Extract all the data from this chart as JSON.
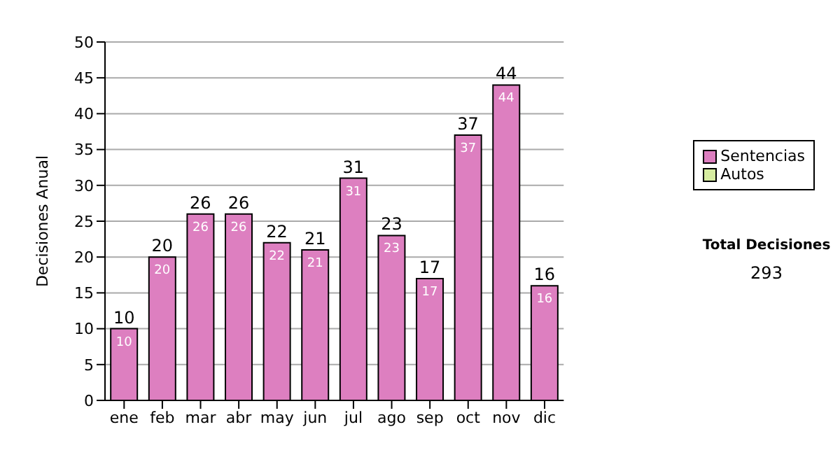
{
  "chart_data": {
    "type": "bar",
    "ylabel": "Decisiones Anual",
    "categories": [
      "ene",
      "feb",
      "mar",
      "abr",
      "may",
      "jun",
      "jul",
      "ago",
      "sep",
      "oct",
      "nov",
      "dic"
    ],
    "series": [
      {
        "name": "Sentencias",
        "color": "#dd7fc0",
        "values": [
          10,
          20,
          26,
          26,
          22,
          21,
          31,
          23,
          17,
          37,
          44,
          16
        ],
        "value_labels": [
          "10",
          "20",
          "26",
          "26",
          "22",
          "21",
          "31",
          "23",
          "17",
          "37",
          "44",
          "16"
        ]
      },
      {
        "name": "Autos",
        "color": "#d6eca0",
        "values": [
          0,
          0,
          0,
          0,
          0,
          0,
          0,
          0,
          0,
          0,
          0,
          0
        ]
      }
    ],
    "stacked": true,
    "totals": [
      "10",
      "20",
      "26",
      "26",
      "22",
      "21",
      "31",
      "23",
      "17",
      "37",
      "44",
      "16"
    ],
    "ylim": [
      0,
      50
    ],
    "yticks": [
      0,
      5,
      10,
      15,
      20,
      25,
      30,
      35,
      40,
      45,
      50
    ],
    "grid": "y",
    "legend": "right",
    "annotations": [
      "Total Decisiones",
      "293"
    ]
  }
}
